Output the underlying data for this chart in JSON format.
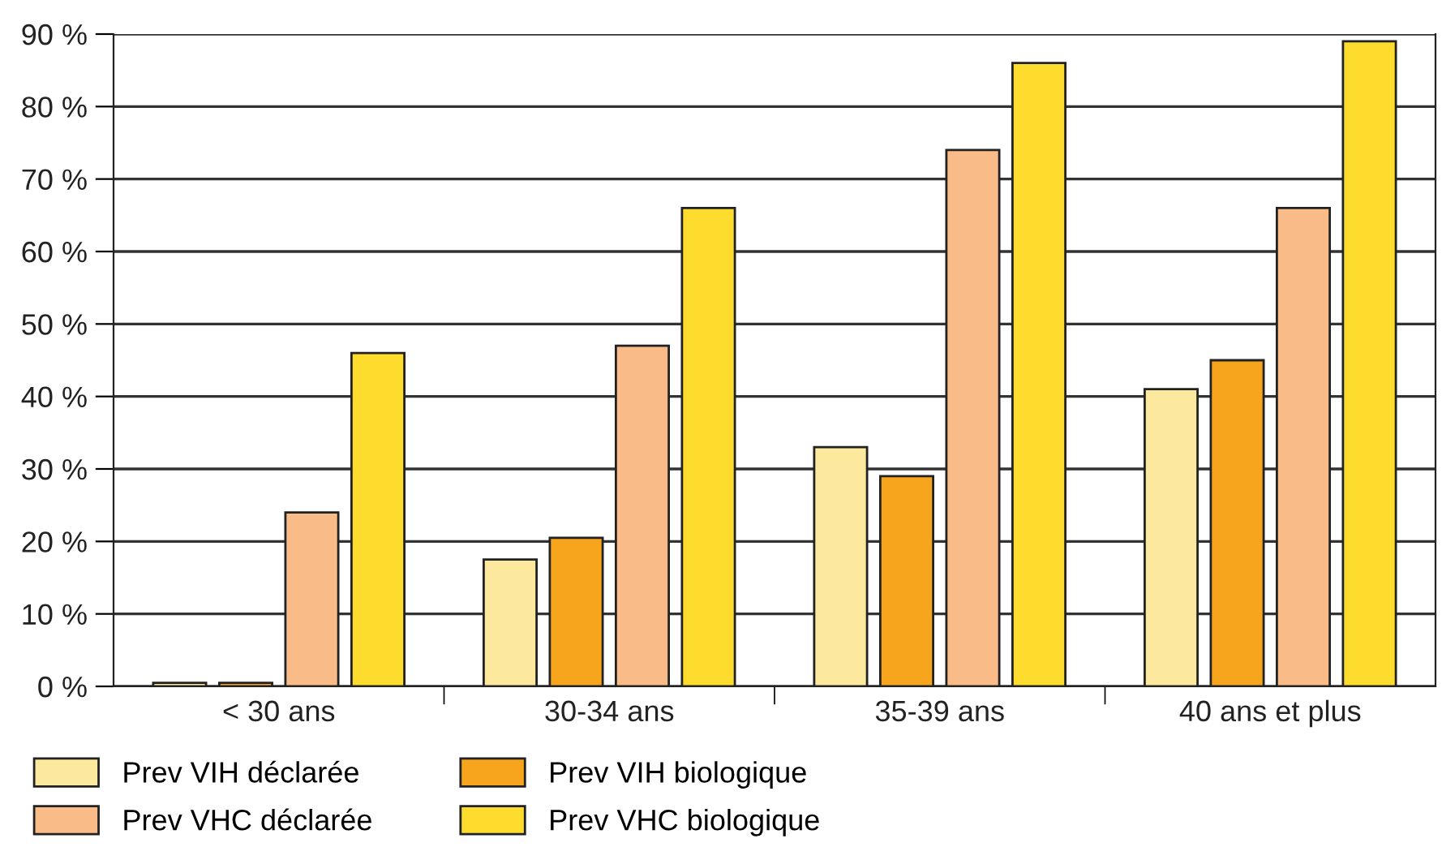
{
  "chart_data": {
    "type": "bar",
    "categories": [
      "< 30 ans",
      "30-34 ans",
      "35-39 ans",
      "40 ans et plus"
    ],
    "series": [
      {
        "name": "Prev VIH déclarée",
        "color": "#fde99e",
        "values": [
          0.5,
          17.5,
          33,
          41
        ]
      },
      {
        "name": "Prev VIH biologique",
        "color": "#f7a51c",
        "values": [
          0.5,
          20.5,
          29,
          45
        ]
      },
      {
        "name": "Prev VHC déclarée",
        "color": "#f9bc88",
        "values": [
          24,
          47,
          74,
          66
        ]
      },
      {
        "name": "Prev VHC biologique",
        "color": "#fedc2e",
        "values": [
          46,
          66,
          86,
          89
        ]
      }
    ],
    "ylim": [
      0,
      90
    ],
    "yticks": [
      {
        "value": 0,
        "label": "0 %"
      },
      {
        "value": 10,
        "label": "10 %"
      },
      {
        "value": 20,
        "label": "20 %"
      },
      {
        "value": 30,
        "label": "30 %"
      },
      {
        "value": 40,
        "label": "40 %"
      },
      {
        "value": 50,
        "label": "50 %"
      },
      {
        "value": 60,
        "label": "60 %"
      },
      {
        "value": 70,
        "label": "70 %"
      },
      {
        "value": 80,
        "label": "80 %"
      },
      {
        "value": 90,
        "label": "90 %"
      }
    ],
    "grid": "y",
    "legend": "bottom"
  }
}
